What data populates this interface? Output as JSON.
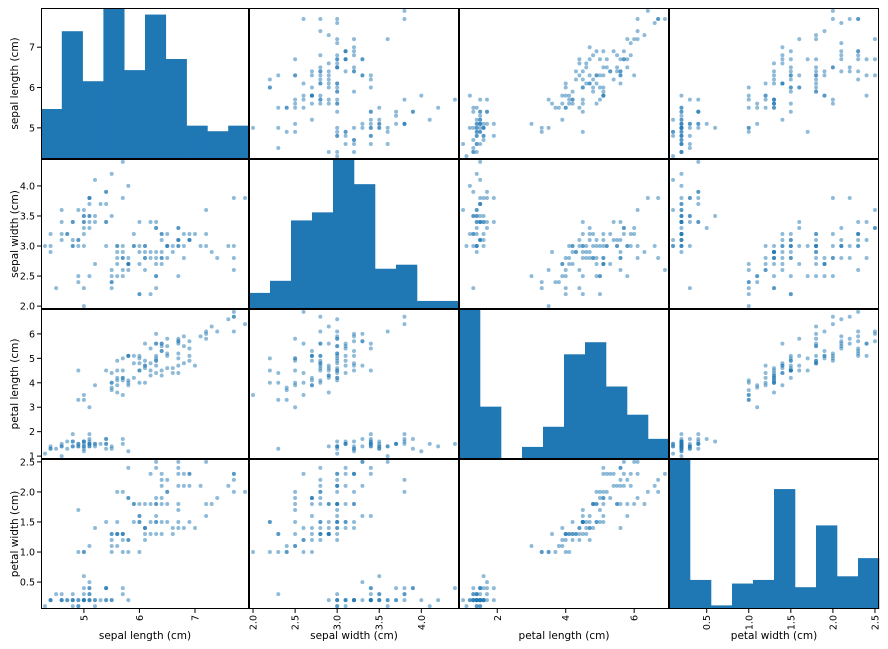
{
  "chart_data": {
    "type": "scatter_matrix",
    "variables": [
      "sepal length (cm)",
      "sepal width (cm)",
      "petal length (cm)",
      "petal width (cm)"
    ],
    "ranges": [
      [
        4.3,
        7.9
      ],
      [
        2.0,
        4.4
      ],
      [
        1.0,
        6.9
      ],
      [
        0.1,
        2.5
      ]
    ],
    "y_ticks": [
      [
        5,
        6,
        7
      ],
      [
        2.0,
        2.5,
        3.0,
        3.5,
        4.0
      ],
      [
        1,
        2,
        3,
        4,
        5,
        6
      ],
      [
        0.5,
        1.0,
        1.5,
        2.0,
        2.5
      ]
    ],
    "y_tick_labels": [
      [
        "5",
        "6",
        "7"
      ],
      [
        "2.0",
        "2.5",
        "3.0",
        "3.5",
        "4.0"
      ],
      [
        "1",
        "2",
        "3",
        "4",
        "5",
        "6"
      ],
      [
        "0.5",
        "1.0",
        "1.5",
        "2.0",
        "2.5"
      ]
    ],
    "x_ticks": [
      [
        5,
        6,
        7
      ],
      [
        2.0,
        2.5,
        3.0,
        3.5,
        4.0
      ],
      [
        2,
        4,
        6
      ],
      [
        0.5,
        1.0,
        1.5,
        2.0,
        2.5
      ]
    ],
    "x_tick_labels": [
      [
        "5",
        "6",
        "7"
      ],
      [
        "2.0",
        "2.5",
        "3.0",
        "3.5",
        "4.0"
      ],
      [
        "2",
        "4",
        "6"
      ],
      [
        "0.5",
        "1.0",
        "1.5",
        "2.0",
        "2.5"
      ]
    ],
    "histogram_counts": [
      [
        9,
        23,
        14,
        27,
        16,
        26,
        18,
        6,
        5,
        6
      ],
      [
        4,
        7,
        22,
        24,
        37,
        31,
        10,
        11,
        2,
        2
      ],
      [
        37,
        13,
        0,
        3,
        8,
        26,
        29,
        18,
        11,
        5
      ],
      [
        41,
        8,
        1,
        7,
        8,
        33,
        6,
        23,
        9,
        14
      ]
    ],
    "histogram_bins": 10,
    "histogram_color": "#1f77b4",
    "point_color": "#1f77b4",
    "point_alpha": 0.5,
    "samples": [
      [
        5.1,
        3.5,
        1.4,
        0.2
      ],
      [
        4.9,
        3.0,
        1.4,
        0.2
      ],
      [
        4.7,
        3.2,
        1.3,
        0.2
      ],
      [
        4.6,
        3.1,
        1.5,
        0.2
      ],
      [
        5.0,
        3.6,
        1.4,
        0.2
      ],
      [
        5.4,
        3.9,
        1.7,
        0.4
      ],
      [
        4.6,
        3.4,
        1.4,
        0.3
      ],
      [
        5.0,
        3.4,
        1.5,
        0.2
      ],
      [
        4.4,
        2.9,
        1.4,
        0.2
      ],
      [
        4.9,
        3.1,
        1.5,
        0.1
      ],
      [
        5.4,
        3.7,
        1.5,
        0.2
      ],
      [
        4.8,
        3.4,
        1.6,
        0.2
      ],
      [
        4.8,
        3.0,
        1.4,
        0.1
      ],
      [
        4.3,
        3.0,
        1.1,
        0.1
      ],
      [
        5.8,
        4.0,
        1.2,
        0.2
      ],
      [
        5.7,
        4.4,
        1.5,
        0.4
      ],
      [
        5.4,
        3.9,
        1.3,
        0.4
      ],
      [
        5.1,
        3.5,
        1.4,
        0.3
      ],
      [
        5.7,
        3.8,
        1.7,
        0.3
      ],
      [
        5.1,
        3.8,
        1.5,
        0.3
      ],
      [
        5.4,
        3.4,
        1.7,
        0.2
      ],
      [
        5.1,
        3.7,
        1.5,
        0.4
      ],
      [
        4.6,
        3.6,
        1.0,
        0.2
      ],
      [
        5.1,
        3.3,
        1.7,
        0.5
      ],
      [
        4.8,
        3.4,
        1.9,
        0.2
      ],
      [
        5.0,
        3.0,
        1.6,
        0.2
      ],
      [
        5.0,
        3.4,
        1.6,
        0.4
      ],
      [
        5.2,
        3.5,
        1.5,
        0.2
      ],
      [
        5.2,
        3.4,
        1.4,
        0.2
      ],
      [
        4.7,
        3.2,
        1.6,
        0.2
      ],
      [
        4.8,
        3.1,
        1.6,
        0.2
      ],
      [
        5.4,
        3.4,
        1.5,
        0.4
      ],
      [
        5.2,
        4.1,
        1.5,
        0.1
      ],
      [
        5.5,
        4.2,
        1.4,
        0.2
      ],
      [
        4.9,
        3.1,
        1.5,
        0.2
      ],
      [
        5.0,
        3.2,
        1.2,
        0.2
      ],
      [
        5.5,
        3.5,
        1.3,
        0.2
      ],
      [
        4.9,
        3.6,
        1.4,
        0.1
      ],
      [
        4.4,
        3.0,
        1.3,
        0.2
      ],
      [
        5.1,
        3.4,
        1.5,
        0.2
      ],
      [
        5.0,
        3.5,
        1.3,
        0.3
      ],
      [
        4.5,
        2.3,
        1.3,
        0.3
      ],
      [
        4.4,
        3.2,
        1.3,
        0.2
      ],
      [
        5.0,
        3.5,
        1.6,
        0.6
      ],
      [
        5.1,
        3.8,
        1.9,
        0.4
      ],
      [
        4.8,
        3.0,
        1.4,
        0.3
      ],
      [
        5.1,
        3.8,
        1.6,
        0.2
      ],
      [
        4.6,
        3.2,
        1.4,
        0.2
      ],
      [
        5.3,
        3.7,
        1.5,
        0.2
      ],
      [
        5.0,
        3.3,
        1.4,
        0.2
      ],
      [
        7.0,
        3.2,
        4.7,
        1.4
      ],
      [
        6.4,
        3.2,
        4.5,
        1.5
      ],
      [
        6.9,
        3.1,
        4.9,
        1.5
      ],
      [
        5.5,
        2.3,
        4.0,
        1.3
      ],
      [
        6.5,
        2.8,
        4.6,
        1.5
      ],
      [
        5.7,
        2.8,
        4.5,
        1.3
      ],
      [
        6.3,
        3.3,
        4.7,
        1.6
      ],
      [
        4.9,
        2.4,
        3.3,
        1.0
      ],
      [
        6.6,
        2.9,
        4.6,
        1.3
      ],
      [
        5.2,
        2.7,
        3.9,
        1.4
      ],
      [
        5.0,
        2.0,
        3.5,
        1.0
      ],
      [
        5.9,
        3.0,
        4.2,
        1.5
      ],
      [
        6.0,
        2.2,
        4.0,
        1.0
      ],
      [
        6.1,
        2.9,
        4.7,
        1.4
      ],
      [
        5.6,
        2.9,
        3.6,
        1.3
      ],
      [
        6.7,
        3.1,
        4.4,
        1.4
      ],
      [
        5.6,
        3.0,
        4.5,
        1.5
      ],
      [
        5.8,
        2.7,
        4.1,
        1.0
      ],
      [
        6.2,
        2.2,
        4.5,
        1.5
      ],
      [
        5.6,
        2.5,
        3.9,
        1.1
      ],
      [
        5.9,
        3.2,
        4.8,
        1.8
      ],
      [
        6.1,
        2.8,
        4.0,
        1.3
      ],
      [
        6.3,
        2.5,
        4.9,
        1.5
      ],
      [
        6.1,
        2.8,
        4.7,
        1.2
      ],
      [
        6.4,
        2.9,
        4.3,
        1.3
      ],
      [
        6.6,
        3.0,
        4.4,
        1.4
      ],
      [
        6.8,
        2.8,
        4.8,
        1.4
      ],
      [
        6.7,
        3.0,
        5.0,
        1.7
      ],
      [
        6.0,
        2.9,
        4.5,
        1.5
      ],
      [
        5.7,
        2.6,
        3.5,
        1.0
      ],
      [
        5.5,
        2.4,
        3.8,
        1.1
      ],
      [
        5.5,
        2.4,
        3.7,
        1.0
      ],
      [
        5.8,
        2.7,
        3.9,
        1.2
      ],
      [
        6.0,
        2.7,
        5.1,
        1.6
      ],
      [
        5.4,
        3.0,
        4.5,
        1.5
      ],
      [
        6.0,
        3.4,
        4.5,
        1.6
      ],
      [
        6.7,
        3.1,
        4.7,
        1.5
      ],
      [
        6.3,
        2.3,
        4.4,
        1.3
      ],
      [
        5.6,
        3.0,
        4.1,
        1.3
      ],
      [
        5.5,
        2.5,
        4.0,
        1.3
      ],
      [
        5.5,
        2.6,
        4.4,
        1.2
      ],
      [
        6.1,
        3.0,
        4.6,
        1.4
      ],
      [
        5.8,
        2.6,
        4.0,
        1.2
      ],
      [
        5.0,
        2.3,
        3.3,
        1.0
      ],
      [
        5.6,
        2.7,
        4.2,
        1.3
      ],
      [
        5.7,
        3.0,
        4.2,
        1.2
      ],
      [
        5.7,
        2.9,
        4.2,
        1.3
      ],
      [
        6.2,
        2.9,
        4.3,
        1.3
      ],
      [
        5.1,
        2.5,
        3.0,
        1.1
      ],
      [
        5.7,
        2.8,
        4.1,
        1.3
      ],
      [
        6.3,
        3.3,
        6.0,
        2.5
      ],
      [
        5.8,
        2.7,
        5.1,
        1.9
      ],
      [
        7.1,
        3.0,
        5.9,
        2.1
      ],
      [
        6.3,
        2.9,
        5.6,
        1.8
      ],
      [
        6.5,
        3.0,
        5.8,
        2.2
      ],
      [
        7.6,
        3.0,
        6.6,
        2.1
      ],
      [
        4.9,
        2.5,
        4.5,
        1.7
      ],
      [
        7.3,
        2.9,
        6.3,
        1.8
      ],
      [
        6.7,
        2.5,
        5.8,
        1.8
      ],
      [
        7.2,
        3.6,
        6.1,
        2.5
      ],
      [
        6.5,
        3.2,
        5.1,
        2.0
      ],
      [
        6.4,
        2.7,
        5.3,
        1.9
      ],
      [
        6.8,
        3.0,
        5.5,
        2.1
      ],
      [
        5.7,
        2.5,
        5.0,
        2.0
      ],
      [
        5.8,
        2.8,
        5.1,
        2.4
      ],
      [
        6.4,
        3.2,
        5.3,
        2.3
      ],
      [
        6.5,
        3.0,
        5.5,
        1.8
      ],
      [
        7.7,
        3.8,
        6.7,
        2.2
      ],
      [
        7.7,
        2.6,
        6.9,
        2.3
      ],
      [
        6.0,
        2.2,
        5.0,
        1.5
      ],
      [
        6.9,
        3.2,
        5.7,
        2.3
      ],
      [
        5.6,
        2.8,
        4.9,
        2.0
      ],
      [
        7.7,
        2.8,
        6.7,
        2.0
      ],
      [
        6.3,
        2.7,
        4.9,
        1.8
      ],
      [
        6.7,
        3.3,
        5.7,
        2.1
      ],
      [
        7.2,
        3.2,
        6.0,
        1.8
      ],
      [
        6.2,
        2.8,
        4.8,
        1.8
      ],
      [
        6.1,
        3.0,
        4.9,
        1.8
      ],
      [
        6.4,
        2.8,
        5.6,
        2.1
      ],
      [
        7.2,
        3.0,
        5.8,
        1.6
      ],
      [
        7.4,
        2.8,
        6.1,
        1.9
      ],
      [
        7.9,
        3.8,
        6.4,
        2.0
      ],
      [
        6.4,
        2.8,
        5.6,
        2.2
      ],
      [
        6.3,
        2.8,
        5.1,
        1.5
      ],
      [
        6.1,
        2.6,
        5.6,
        1.4
      ],
      [
        7.7,
        3.0,
        6.1,
        2.3
      ],
      [
        6.3,
        3.4,
        5.6,
        2.4
      ],
      [
        6.4,
        3.1,
        5.5,
        1.8
      ],
      [
        6.0,
        3.0,
        4.8,
        1.8
      ],
      [
        6.9,
        3.1,
        5.4,
        2.1
      ],
      [
        6.7,
        3.1,
        5.6,
        2.4
      ],
      [
        6.9,
        3.1,
        5.1,
        2.3
      ],
      [
        5.8,
        2.7,
        5.1,
        1.9
      ],
      [
        6.8,
        3.2,
        5.9,
        2.3
      ],
      [
        6.7,
        3.3,
        5.7,
        2.5
      ],
      [
        6.7,
        3.0,
        5.2,
        2.3
      ],
      [
        6.3,
        2.5,
        5.0,
        1.9
      ],
      [
        6.5,
        3.0,
        5.2,
        2.0
      ],
      [
        6.2,
        3.4,
        5.4,
        2.3
      ],
      [
        5.9,
        3.0,
        5.1,
        1.8
      ]
    ]
  }
}
